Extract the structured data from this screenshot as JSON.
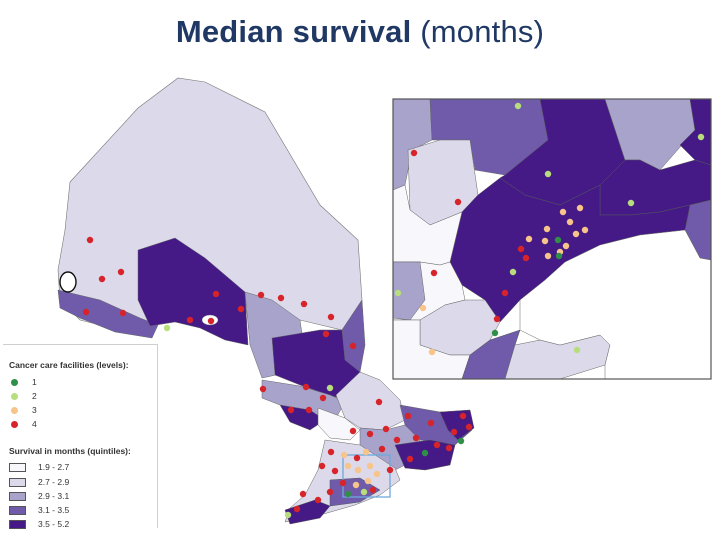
{
  "title": {
    "bold": "Median survival",
    "light": "(months)"
  },
  "colors": {
    "q1": "#f8f7fb",
    "q2": "#dcdaea",
    "q3": "#a7a3cb",
    "q4": "#6f5ba9",
    "q5": "#451a87",
    "level1": "#2f8f46",
    "level2": "#b7dd7c",
    "level3": "#f7c48a",
    "level4": "#d7232a",
    "title": "#1f3864",
    "inset_box": "#6fa8dc"
  },
  "legend": {
    "facilities_title": "Cancer care facilities (levels):",
    "facilities": [
      {
        "label": "1",
        "color": "#2f8f46"
      },
      {
        "label": "2",
        "color": "#b7dd7c"
      },
      {
        "label": "3",
        "color": "#f7c48a"
      },
      {
        "label": "4",
        "color": "#d7232a"
      }
    ],
    "survival_title": "Survival in months (quintiles):",
    "quintiles": [
      {
        "label": "1.9 - 2.7",
        "color": "#f8f7fb"
      },
      {
        "label": "2.7 - 2.9",
        "color": "#dcdaea"
      },
      {
        "label": "2.9 - 3.1",
        "color": "#a7a3cb"
      },
      {
        "label": "3.1 - 3.5",
        "color": "#6f5ba9"
      },
      {
        "label": "3.5 - 5.2",
        "color": "#451a87"
      }
    ]
  }
}
